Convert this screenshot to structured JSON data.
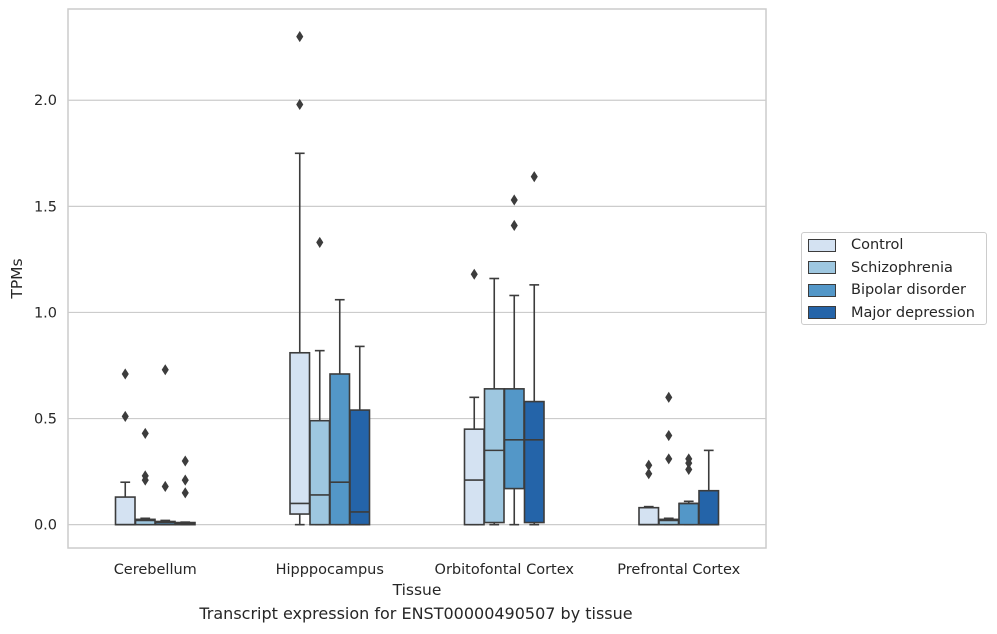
{
  "chart_data": {
    "type": "box",
    "xlabel": "Tissue",
    "ylabel": "TPMs",
    "caption": "Transcript expression for ENST00000490507 by tissue",
    "ylim": [
      -0.11,
      2.43
    ],
    "yticks": [
      "0.0",
      "0.5",
      "1.0",
      "1.5",
      "2.0"
    ],
    "grid": "horizontal",
    "legend_position": "right",
    "categories": [
      "Cerebellum",
      "Hipppocampus",
      "Orbitofontal Cortex",
      "Prefrontal Cortex"
    ],
    "series": [
      {
        "name": "Control",
        "color": "#d4e2f2",
        "boxes": [
          {
            "whislo": 0.0,
            "q1": 0.0,
            "med": 0.0,
            "q3": 0.13,
            "whishi": 0.2,
            "fliers": [
              0.71,
              0.51
            ]
          },
          {
            "whislo": 0.0,
            "q1": 0.05,
            "med": 0.1,
            "q3": 0.81,
            "whishi": 1.75,
            "fliers": [
              2.3,
              1.98
            ]
          },
          {
            "whislo": 0.0,
            "q1": 0.0,
            "med": 0.21,
            "q3": 0.45,
            "whishi": 0.6,
            "fliers": [
              1.18
            ]
          },
          {
            "whislo": 0.0,
            "q1": 0.0,
            "med": 0.0,
            "q3": 0.08,
            "whishi": 0.085,
            "fliers": [
              0.28,
              0.24
            ]
          }
        ]
      },
      {
        "name": "Schizophrenia",
        "color": "#9ec7e0",
        "boxes": [
          {
            "whislo": 0.0,
            "q1": 0.0,
            "med": 0.02,
            "q3": 0.025,
            "whishi": 0.03,
            "fliers": [
              0.43,
              0.23,
              0.21
            ]
          },
          {
            "whislo": 0.0,
            "q1": 0.0,
            "med": 0.14,
            "q3": 0.49,
            "whishi": 0.82,
            "fliers": [
              1.33
            ]
          },
          {
            "whislo": 0.0,
            "q1": 0.01,
            "med": 0.35,
            "q3": 0.64,
            "whishi": 1.16,
            "fliers": []
          },
          {
            "whislo": 0.0,
            "q1": 0.0,
            "med": 0.02,
            "q3": 0.025,
            "whishi": 0.03,
            "fliers": [
              0.6,
              0.42,
              0.31
            ]
          }
        ]
      },
      {
        "name": "Bipolar disorder",
        "color": "#5397c8",
        "boxes": [
          {
            "whislo": 0.0,
            "q1": 0.0,
            "med": 0.01,
            "q3": 0.015,
            "whishi": 0.02,
            "fliers": [
              0.73,
              0.18
            ]
          },
          {
            "whislo": 0.0,
            "q1": 0.0,
            "med": 0.2,
            "q3": 0.71,
            "whishi": 1.06,
            "fliers": []
          },
          {
            "whislo": 0.0,
            "q1": 0.17,
            "med": 0.4,
            "q3": 0.64,
            "whishi": 1.08,
            "fliers": [
              1.53,
              1.41
            ]
          },
          {
            "whislo": 0.0,
            "q1": 0.0,
            "med": 0.1,
            "q3": 0.1,
            "whishi": 0.11,
            "fliers": [
              0.31,
              0.29,
              0.26
            ]
          }
        ]
      },
      {
        "name": "Major depression",
        "color": "#2464a9",
        "boxes": [
          {
            "whislo": 0.0,
            "q1": 0.0,
            "med": 0.005,
            "q3": 0.01,
            "whishi": 0.012,
            "fliers": [
              0.3,
              0.21,
              0.15
            ]
          },
          {
            "whislo": 0.0,
            "q1": 0.0,
            "med": 0.06,
            "q3": 0.54,
            "whishi": 0.84,
            "fliers": []
          },
          {
            "whislo": 0.0,
            "q1": 0.01,
            "med": 0.4,
            "q3": 0.58,
            "whishi": 1.13,
            "fliers": [
              1.64
            ]
          },
          {
            "whislo": 0.0,
            "q1": 0.0,
            "med": 0.0,
            "q3": 0.16,
            "whishi": 0.35,
            "fliers": []
          }
        ]
      }
    ]
  }
}
